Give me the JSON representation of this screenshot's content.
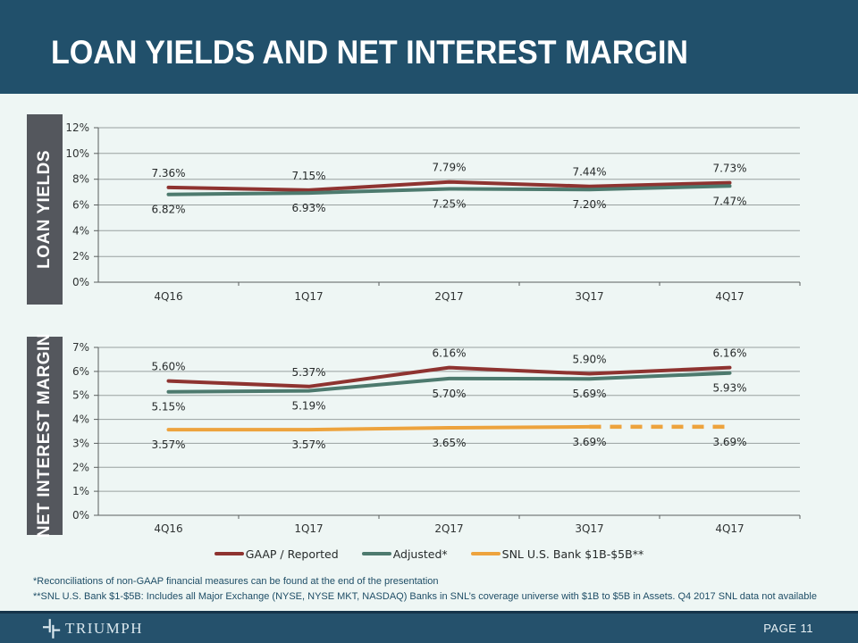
{
  "slide": {
    "title": "LOAN YIELDS AND NET INTEREST MARGIN",
    "brand": "TRIUMPH",
    "page_label": "PAGE 11",
    "footnotes": [
      "*Reconciliations of non-GAAP financial measures can be found at the end of the presentation",
      "**SNL U.S. Bank $1-$5B: Includes all Major Exchange (NYSE, NYSE MKT, NASDAQ) Banks in SNL’s coverage universe with $1B to $5B in Assets. Q4 2017 SNL data not available"
    ]
  },
  "colors": {
    "header_bg": "#21506B",
    "page_bg": "#EEF6F4",
    "tab_bg": "#54575D",
    "gaap": "#8E3330",
    "adjusted": "#4D7A6E",
    "snl": "#EDA33D",
    "gridline": "#98A09F",
    "axis": "#5A5F5E"
  },
  "legend": [
    {
      "label": "GAAP / Reported",
      "color_key": "gaap"
    },
    {
      "label": "Adjusted*",
      "color_key": "adjusted"
    },
    {
      "label": "SNL U.S. Bank $1B-$5B**",
      "color_key": "snl"
    }
  ],
  "chart_data": [
    {
      "type": "line",
      "title": "LOAN YIELDS",
      "categories": [
        "4Q16",
        "1Q17",
        "2Q17",
        "3Q17",
        "4Q17"
      ],
      "y_axis": {
        "min": 0,
        "max": 12,
        "step": 2,
        "suffix": "%"
      },
      "grid": true,
      "legend_position": "none",
      "series": [
        {
          "name": "GAAP / Reported",
          "color_key": "gaap",
          "label_position": "above",
          "values": [
            7.36,
            7.15,
            7.79,
            7.44,
            7.73
          ],
          "labels": [
            "7.36%",
            "7.15%",
            "7.79%",
            "7.44%",
            "7.73%"
          ]
        },
        {
          "name": "Adjusted*",
          "color_key": "adjusted",
          "label_position": "below",
          "values": [
            6.82,
            6.93,
            7.25,
            7.2,
            7.47
          ],
          "labels": [
            "6.82%",
            "6.93%",
            "7.25%",
            "7.20%",
            "7.47%"
          ]
        }
      ]
    },
    {
      "type": "line",
      "title": "NET INTEREST MARGIN",
      "categories": [
        "4Q16",
        "1Q17",
        "2Q17",
        "3Q17",
        "4Q17"
      ],
      "y_axis": {
        "min": 0,
        "max": 7,
        "step": 1,
        "suffix": "%"
      },
      "grid": true,
      "legend_position": "bottom",
      "series": [
        {
          "name": "GAAP / Reported",
          "color_key": "gaap",
          "label_position": "above",
          "values": [
            5.6,
            5.37,
            6.16,
            5.9,
            6.16
          ],
          "labels": [
            "5.60%",
            "5.37%",
            "6.16%",
            "5.90%",
            "6.16%"
          ]
        },
        {
          "name": "Adjusted*",
          "color_key": "adjusted",
          "label_position": "below",
          "values": [
            5.15,
            5.19,
            5.7,
            5.69,
            5.93
          ],
          "labels": [
            "5.15%",
            "5.19%",
            "5.70%",
            "5.69%",
            "5.93%"
          ]
        },
        {
          "name": "SNL U.S. Bank $1B-$5B**",
          "color_key": "snl",
          "label_position": "below",
          "values": [
            3.57,
            3.57,
            3.65,
            3.69,
            3.69
          ],
          "labels": [
            "3.57%",
            "3.57%",
            "3.65%",
            "3.69%",
            "3.69%"
          ],
          "dash_from": 3,
          "dash_note": "Q4 2017 SNL data not available"
        }
      ]
    }
  ]
}
